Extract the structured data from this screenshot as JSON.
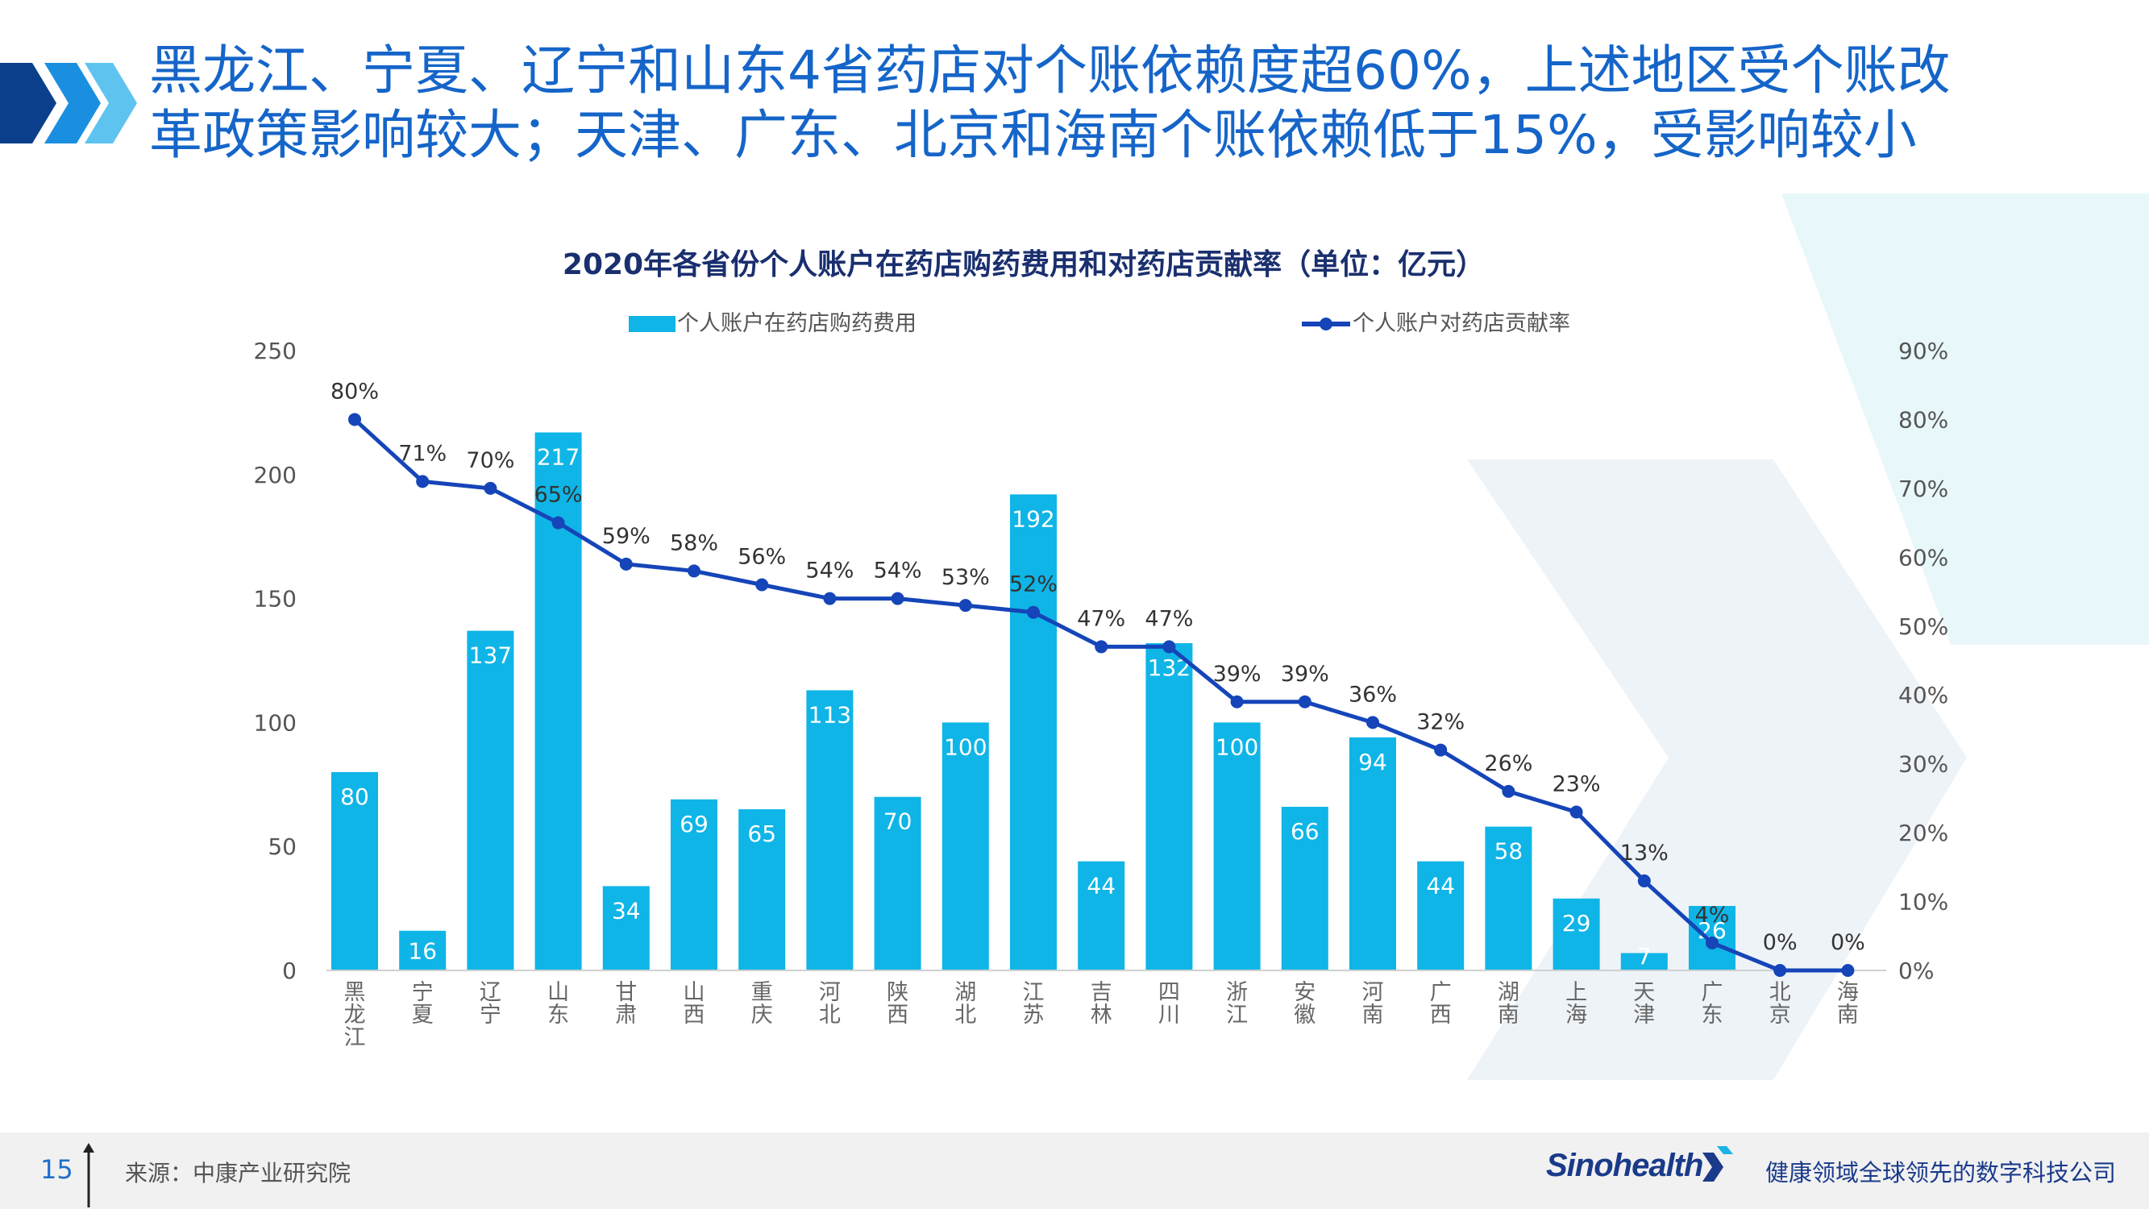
{
  "headline": {
    "line1": "黑龙江、宁夏、辽宁和山东4省药店对个账依赖度超60%，上述地区受个账改",
    "line2": "革政策影响较大；天津、广东、北京和海南个账依赖低于15%，受影响较小"
  },
  "colors": {
    "bar": "#0fb5e6",
    "line": "#1545b8",
    "headline": "#1565c9",
    "chart_title": "#1a2f6e"
  },
  "chart_data": {
    "type": "bar",
    "title": "2020年各省份个人账户在药店购药费用和对药店贡献率（单位：亿元）",
    "categories": [
      "黑龙江",
      "宁夏",
      "辽宁",
      "山东",
      "甘肃",
      "山西",
      "重庆",
      "河北",
      "陕西",
      "湖北",
      "江苏",
      "吉林",
      "四川",
      "浙江",
      "安徽",
      "河南",
      "广西",
      "湖南",
      "上海",
      "天津",
      "广东",
      "北京",
      "海南"
    ],
    "series": [
      {
        "name": "个人账户在药店购药费用",
        "kind": "bar",
        "axis": "left",
        "values": [
          80,
          16,
          137,
          217,
          34,
          69,
          65,
          113,
          70,
          100,
          192,
          44,
          132,
          100,
          66,
          94,
          44,
          58,
          29,
          7,
          26,
          0,
          0
        ],
        "labels": [
          "80",
          "16",
          "137",
          "217",
          "34",
          "69",
          "65",
          "113",
          "70",
          "100",
          "192",
          "44",
          "132",
          "100",
          "66",
          "94",
          "44",
          "58",
          "29",
          "7",
          "26",
          "",
          ""
        ]
      },
      {
        "name": "个人账户对药店贡献率",
        "kind": "line",
        "axis": "right",
        "values": [
          80,
          71,
          70,
          65,
          59,
          58,
          56,
          54,
          54,
          53,
          52,
          47,
          47,
          39,
          39,
          36,
          32,
          26,
          23,
          13,
          4,
          0,
          0
        ],
        "labels": [
          "80%",
          "71%",
          "70%",
          "65%",
          "59%",
          "58%",
          "56%",
          "54%",
          "54%",
          "53%",
          "52%",
          "47%",
          "47%",
          "39%",
          "39%",
          "36%",
          "32%",
          "26%",
          "23%",
          "13%",
          "4%",
          "0%",
          "0%"
        ]
      }
    ],
    "y_left": {
      "min": 0,
      "max": 250,
      "ticks": [
        "0",
        "50",
        "100",
        "150",
        "200",
        "250"
      ]
    },
    "y_right": {
      "min": 0,
      "max": 90,
      "ticks": [
        "0%",
        "10%",
        "20%",
        "30%",
        "40%",
        "50%",
        "60%",
        "70%",
        "80%",
        "90%"
      ]
    },
    "legend_position": "top",
    "grid": false
  },
  "footer": {
    "page_number": "15",
    "source": "来源：中康产业研究院",
    "brand": "Sinohealth",
    "slogan": "健康领域全球领先的数字科技公司"
  }
}
